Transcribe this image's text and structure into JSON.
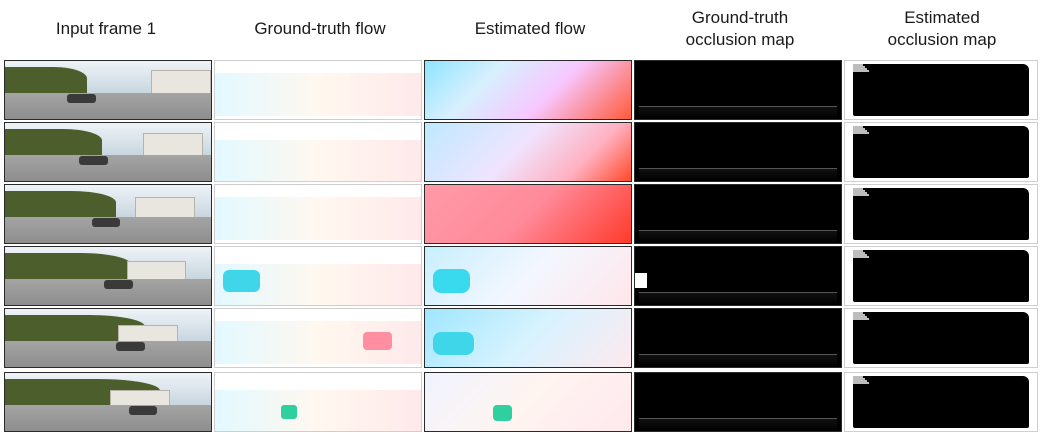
{
  "columns": [
    {
      "id": "input",
      "title": "Input frame 1"
    },
    {
      "id": "gt_flow",
      "title": "Ground-truth flow"
    },
    {
      "id": "est_flow",
      "title": "Estimated flow"
    },
    {
      "id": "gt_occ",
      "title": "Ground-truth\nocclusion map"
    },
    {
      "id": "est_occ",
      "title": "Estimated\nocclusion map"
    }
  ],
  "rows": 6,
  "colors": {
    "flow_cyan": "#7fe6ff",
    "flow_pink": "#ff8fa0",
    "flow_red": "#ff3a2a",
    "flow_magenta": "#e98cff",
    "flow_yellow": "#f5e07a",
    "occ_black": "#000000",
    "sky": "#dfe9f2",
    "road": "#8e8e8e",
    "foliage": "#4b5e2c"
  }
}
